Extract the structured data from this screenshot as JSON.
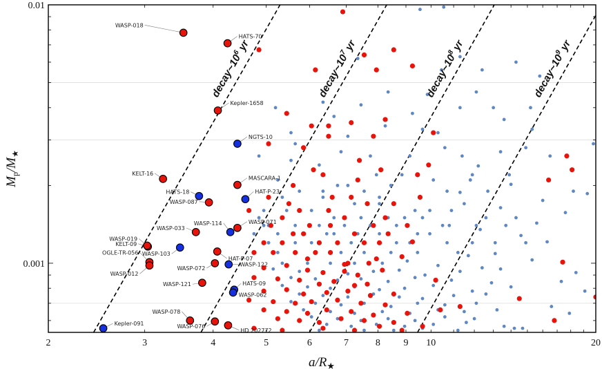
{
  "chart_data": {
    "type": "scatter",
    "xscale": "log",
    "yscale": "log",
    "xlim": [
      2,
      20
    ],
    "ylim": [
      0.00054,
      0.01
    ],
    "xticks": [
      2,
      3,
      4,
      5,
      6,
      7,
      8,
      9,
      10,
      20
    ],
    "yticks": [
      0.001,
      0.01
    ],
    "ytick_labels": [
      "0.001",
      "0.01"
    ],
    "xlabel_main": "a/R",
    "xlabel_sub": "★",
    "ylabel_main": "M",
    "ylabel_sub1": "p",
    "ylabel_mid": "/M",
    "ylabel_sub2": "★",
    "grid": "horizontal",
    "colors": {
      "red": "#e8140c",
      "blue": "#1530e0",
      "bg_points": "#5f87c3",
      "frame": "#000000",
      "grid": "#dddddd"
    },
    "decay_lines": [
      {
        "label": "decay~10",
        "exponent": "6",
        "unit": "yr",
        "x_at_ymin": 2.42,
        "x_at_ymax": 5.3
      },
      {
        "label": "decay~10",
        "exponent": "7",
        "unit": "yr",
        "x_at_ymin": 3.8,
        "x_at_ymax": 8.3
      },
      {
        "label": "decay~10",
        "exponent": "8",
        "unit": "yr",
        "x_at_ymin": 6.0,
        "x_at_ymax": 13.05
      },
      {
        "label": "decay~10",
        "exponent": "9",
        "unit": "yr",
        "x_at_ymin": 9.45,
        "x_at_ymax": 20.5
      }
    ],
    "labeled_planets": [
      {
        "name": "WASP-018",
        "x": 3.53,
        "y": 0.0078,
        "color": "red"
      },
      {
        "name": "HATS-70",
        "x": 4.25,
        "y": 0.0071,
        "color": "red"
      },
      {
        "name": "Kepler-1658",
        "x": 4.08,
        "y": 0.0039,
        "color": "red"
      },
      {
        "name": "NGTS-10",
        "x": 4.43,
        "y": 0.0029,
        "color": "blue"
      },
      {
        "name": "KELT-16",
        "x": 3.24,
        "y": 0.00212,
        "color": "red"
      },
      {
        "name": "MASCARA-1",
        "x": 4.43,
        "y": 0.00201,
        "color": "red"
      },
      {
        "name": "HAT-P-23",
        "x": 4.58,
        "y": 0.00177,
        "color": "blue"
      },
      {
        "name": "HATS-18",
        "x": 3.77,
        "y": 0.00182,
        "color": "blue"
      },
      {
        "name": "WASP-087",
        "x": 3.93,
        "y": 0.00172,
        "color": "red"
      },
      {
        "name": "WASP-114",
        "x": 4.3,
        "y": 0.00132,
        "color": "blue"
      },
      {
        "name": "WASP-071",
        "x": 4.43,
        "y": 0.00137,
        "color": "red"
      },
      {
        "name": "WASP-033",
        "x": 3.72,
        "y": 0.00132,
        "color": "red"
      },
      {
        "name": "KELT-09",
        "x": 3.04,
        "y": 0.00116,
        "color": "red"
      },
      {
        "name": "WASP-019",
        "x": 3.03,
        "y": 0.00117,
        "color": "red"
      },
      {
        "name": "WASP-103",
        "x": 3.48,
        "y": 0.00115,
        "color": "blue"
      },
      {
        "name": "HAT-P-07",
        "x": 4.07,
        "y": 0.00111,
        "color": "red"
      },
      {
        "name": "OGLE-TR-056",
        "x": 3.06,
        "y": 0.00101,
        "color": "red"
      },
      {
        "name": "WASP-012",
        "x": 3.06,
        "y": 0.00098,
        "color": "red"
      },
      {
        "name": "WASP-072",
        "x": 4.03,
        "y": 0.001,
        "color": "red"
      },
      {
        "name": "WASP-122",
        "x": 4.27,
        "y": 0.00099,
        "color": "blue"
      },
      {
        "name": "WASP-121",
        "x": 3.82,
        "y": 0.00084,
        "color": "red"
      },
      {
        "name": "HATS-09",
        "x": 4.37,
        "y": 0.00079,
        "color": "blue"
      },
      {
        "name": "WASP-062",
        "x": 4.35,
        "y": 0.00077,
        "color": "blue"
      },
      {
        "name": "WASP-078",
        "x": 3.63,
        "y": 0.0006,
        "color": "red"
      },
      {
        "name": "WASP-076",
        "x": 4.03,
        "y": 0.000595,
        "color": "red"
      },
      {
        "name": "HD 202772",
        "x": 4.26,
        "y": 0.000575,
        "color": "red"
      },
      {
        "name": "Kepler-091",
        "x": 2.52,
        "y": 0.00056,
        "color": "blue"
      }
    ],
    "red_points": [
      [
        4.85,
        0.0067
      ],
      [
        6.9,
        0.0094
      ],
      [
        7.55,
        0.0064
      ],
      [
        8.55,
        0.0067
      ],
      [
        7.95,
        0.0056
      ],
      [
        9.25,
        0.0058
      ],
      [
        6.15,
        0.0056
      ],
      [
        5.45,
        0.0038
      ],
      [
        6.05,
        0.0034
      ],
      [
        6.5,
        0.0034
      ],
      [
        7.15,
        0.0035
      ],
      [
        8.25,
        0.0036
      ],
      [
        10.1,
        0.0032
      ],
      [
        6.5,
        0.0031
      ],
      [
        7.85,
        0.0031
      ],
      [
        5.05,
        0.0029
      ],
      [
        5.85,
        0.0028
      ],
      [
        7.4,
        0.0025
      ],
      [
        9.9,
        0.0024
      ],
      [
        6.1,
        0.0023
      ],
      [
        8.1,
        0.0023
      ],
      [
        6.35,
        0.0022
      ],
      [
        7.35,
        0.0021
      ],
      [
        9.45,
        0.0022
      ],
      [
        16.4,
        0.0021
      ],
      [
        17.7,
        0.0026
      ],
      [
        18.1,
        0.0023
      ],
      [
        5.6,
        0.002
      ],
      [
        5.05,
        0.0018
      ],
      [
        5.5,
        0.0017
      ],
      [
        6.6,
        0.0018
      ],
      [
        7.15,
        0.0018
      ],
      [
        7.65,
        0.0017
      ],
      [
        8.55,
        0.0017
      ],
      [
        9.55,
        0.0018
      ],
      [
        4.65,
        0.0016
      ],
      [
        5.35,
        0.0015
      ],
      [
        5.75,
        0.0016
      ],
      [
        6.5,
        0.0016
      ],
      [
        6.95,
        0.0015
      ],
      [
        8.25,
        0.0015
      ],
      [
        5.1,
        0.0014
      ],
      [
        5.6,
        0.0013
      ],
      [
        6.0,
        0.0014
      ],
      [
        6.55,
        0.0014
      ],
      [
        7.25,
        0.0013
      ],
      [
        7.85,
        0.0014
      ],
      [
        8.35,
        0.0013
      ],
      [
        9.05,
        0.0014
      ],
      [
        4.95,
        0.0012
      ],
      [
        5.35,
        0.0012
      ],
      [
        5.85,
        0.0013
      ],
      [
        6.25,
        0.0012
      ],
      [
        6.75,
        0.0012
      ],
      [
        7.55,
        0.0012
      ],
      [
        8.05,
        0.0012
      ],
      [
        4.75,
        0.0011
      ],
      [
        5.15,
        0.0011
      ],
      [
        5.65,
        0.0011
      ],
      [
        6.15,
        0.0011
      ],
      [
        6.55,
        0.0011
      ],
      [
        7.05,
        0.001
      ],
      [
        7.7,
        0.001
      ],
      [
        4.95,
        0.00096
      ],
      [
        5.45,
        0.00098
      ],
      [
        5.95,
        0.00094
      ],
      [
        6.35,
        0.00092
      ],
      [
        6.95,
        0.00093
      ],
      [
        7.35,
        0.0009
      ],
      [
        8.15,
        0.00094
      ],
      [
        4.75,
        0.00088
      ],
      [
        5.25,
        0.00087
      ],
      [
        5.75,
        0.00086
      ],
      [
        6.25,
        0.00083
      ],
      [
        6.65,
        0.00085
      ],
      [
        7.25,
        0.00082
      ],
      [
        7.65,
        0.00083
      ],
      [
        4.95,
        0.00078
      ],
      [
        5.45,
        0.00079
      ],
      [
        5.85,
        0.00076
      ],
      [
        6.45,
        0.00077
      ],
      [
        7.05,
        0.00078
      ],
      [
        7.75,
        0.00075
      ],
      [
        8.55,
        0.00076
      ],
      [
        4.65,
        0.00072
      ],
      [
        5.15,
        0.00071
      ],
      [
        5.65,
        0.0007
      ],
      [
        6.05,
        0.00071
      ],
      [
        6.75,
        0.00072
      ],
      [
        7.45,
        0.0007
      ],
      [
        8.25,
        0.00069
      ],
      [
        4.95,
        0.00066
      ],
      [
        5.45,
        0.00065
      ],
      [
        5.95,
        0.00064
      ],
      [
        6.45,
        0.00066
      ],
      [
        7.15,
        0.00065
      ],
      [
        7.85,
        0.00063
      ],
      [
        9.05,
        0.00064
      ],
      [
        5.25,
        0.00061
      ],
      [
        5.75,
        0.0006
      ],
      [
        6.25,
        0.00059
      ],
      [
        6.85,
        0.00061
      ],
      [
        7.55,
        0.0006
      ],
      [
        8.55,
        0.00059
      ],
      [
        10.4,
        0.00066
      ],
      [
        11.3,
        0.00068
      ],
      [
        4.75,
        0.00056
      ],
      [
        5.35,
        0.00055
      ],
      [
        6.35,
        0.00056
      ],
      [
        7.25,
        0.00055
      ],
      [
        8.05,
        0.00057
      ],
      [
        8.85,
        0.00055
      ],
      [
        14.5,
        0.00073
      ],
      [
        17.4,
        0.00101
      ],
      [
        16.8,
        0.0006
      ],
      [
        20.0,
        0.00074
      ],
      [
        9.65,
        0.00057
      ],
      [
        10.2,
        0.00086
      ],
      [
        6.95,
        0.00099
      ],
      [
        7.95,
        0.00104
      ],
      [
        5.95,
        0.00104
      ],
      [
        9.25,
        0.00121
      ],
      [
        8.85,
        0.00106
      ]
    ],
    "background_points": [
      [
        5.2,
        0.004
      ],
      [
        6.35,
        0.0042
      ],
      [
        6.65,
        0.0037
      ],
      [
        7.35,
        0.0062
      ],
      [
        9.55,
        0.0096
      ],
      [
        10.55,
        0.0098
      ],
      [
        11.3,
        0.0063
      ],
      [
        10.45,
        0.0056
      ],
      [
        12.4,
        0.0056
      ],
      [
        14.3,
        0.006
      ],
      [
        15.8,
        0.0053
      ],
      [
        12.1,
        0.0046
      ],
      [
        9.85,
        0.0045
      ],
      [
        8.35,
        0.0046
      ],
      [
        7.45,
        0.0041
      ],
      [
        9.25,
        0.0038
      ],
      [
        11.3,
        0.004
      ],
      [
        13.0,
        0.004
      ],
      [
        15.2,
        0.004
      ],
      [
        13.6,
        0.0036
      ],
      [
        10.3,
        0.0032
      ],
      [
        9.65,
        0.0033
      ],
      [
        8.25,
        0.0034
      ],
      [
        7.05,
        0.0031
      ],
      [
        5.55,
        0.0032
      ],
      [
        5.65,
        0.0029
      ],
      [
        6.85,
        0.0027
      ],
      [
        7.75,
        0.0026
      ],
      [
        9.15,
        0.0026
      ],
      [
        11.4,
        0.0026
      ],
      [
        14.9,
        0.0028
      ],
      [
        19.8,
        0.0029
      ],
      [
        4.85,
        0.0026
      ],
      [
        5.55,
        0.0025
      ],
      [
        6.25,
        0.0024
      ],
      [
        7.95,
        0.0022
      ],
      [
        8.85,
        0.0022
      ],
      [
        10.1,
        0.0021
      ],
      [
        11.9,
        0.0022
      ],
      [
        13.9,
        0.0022
      ],
      [
        18.2,
        0.0019
      ],
      [
        5.25,
        0.0021
      ],
      [
        6.75,
        0.002
      ],
      [
        7.55,
        0.0019
      ],
      [
        8.45,
        0.002
      ],
      [
        10.7,
        0.0019
      ],
      [
        12.7,
        0.0019
      ],
      [
        5.75,
        0.0019
      ],
      [
        6.35,
        0.0018
      ],
      [
        7.25,
        0.0017
      ],
      [
        8.05,
        0.0017
      ],
      [
        9.35,
        0.0016
      ],
      [
        11.5,
        0.0017
      ],
      [
        4.95,
        0.0016
      ],
      [
        5.45,
        0.0016
      ],
      [
        6.05,
        0.0016
      ],
      [
        6.65,
        0.0015
      ],
      [
        7.45,
        0.0015
      ],
      [
        8.35,
        0.0015
      ],
      [
        9.65,
        0.0015
      ],
      [
        10.9,
        0.0016
      ],
      [
        14.3,
        0.0015
      ],
      [
        5.05,
        0.0014
      ],
      [
        5.65,
        0.0014
      ],
      [
        6.25,
        0.0014
      ],
      [
        6.95,
        0.0014
      ],
      [
        7.75,
        0.0014
      ],
      [
        8.65,
        0.0014
      ],
      [
        9.95,
        0.0013
      ],
      [
        12.1,
        0.0014
      ],
      [
        4.75,
        0.0013
      ],
      [
        5.25,
        0.0013
      ],
      [
        5.85,
        0.0013
      ],
      [
        6.45,
        0.0013
      ],
      [
        7.15,
        0.0012
      ],
      [
        8.05,
        0.0013
      ],
      [
        9.15,
        0.0012
      ],
      [
        10.7,
        0.0012
      ],
      [
        13.1,
        0.0012
      ],
      [
        5.05,
        0.0012
      ],
      [
        5.65,
        0.0012
      ],
      [
        6.15,
        0.0011
      ],
      [
        6.85,
        0.0011
      ],
      [
        7.55,
        0.0011
      ],
      [
        8.45,
        0.0011
      ],
      [
        9.45,
        0.0011
      ],
      [
        11.2,
        0.0011
      ],
      [
        14.9,
        0.0012
      ],
      [
        5.35,
        0.001
      ],
      [
        5.95,
        0.001
      ],
      [
        6.55,
        0.001
      ],
      [
        7.25,
        0.001
      ],
      [
        8.15,
        0.001
      ],
      [
        9.05,
        0.00102
      ],
      [
        10.3,
        0.00098
      ],
      [
        12.4,
        0.00096
      ],
      [
        5.15,
        0.00095
      ],
      [
        5.75,
        0.00093
      ],
      [
        6.35,
        0.00092
      ],
      [
        7.05,
        0.00091
      ],
      [
        7.85,
        0.00093
      ],
      [
        8.75,
        0.00094
      ],
      [
        9.75,
        0.0009
      ],
      [
        11.3,
        0.00093
      ],
      [
        13.4,
        0.00095
      ],
      [
        5.55,
        0.00088
      ],
      [
        6.15,
        0.00087
      ],
      [
        6.75,
        0.00086
      ],
      [
        7.45,
        0.00087
      ],
      [
        8.35,
        0.00085
      ],
      [
        9.35,
        0.00088
      ],
      [
        10.9,
        0.00086
      ],
      [
        12.9,
        0.00084
      ],
      [
        5.35,
        0.00082
      ],
      [
        5.95,
        0.00081
      ],
      [
        6.55,
        0.0008
      ],
      [
        7.25,
        0.00081
      ],
      [
        8.05,
        0.00079
      ],
      [
        8.95,
        0.0008
      ],
      [
        10.1,
        0.00082
      ],
      [
        11.9,
        0.00078
      ],
      [
        14.0,
        0.00081
      ],
      [
        5.75,
        0.00076
      ],
      [
        6.35,
        0.00075
      ],
      [
        7.05,
        0.00074
      ],
      [
        7.85,
        0.00076
      ],
      [
        8.75,
        0.00074
      ],
      [
        9.65,
        0.00073
      ],
      [
        11.0,
        0.00075
      ],
      [
        12.6,
        0.00076
      ],
      [
        5.55,
        0.00071
      ],
      [
        6.15,
        0.0007
      ],
      [
        6.85,
        0.00069
      ],
      [
        7.55,
        0.0007
      ],
      [
        8.45,
        0.00068
      ],
      [
        9.45,
        0.0007
      ],
      [
        10.6,
        0.00069
      ],
      [
        12.1,
        0.0007
      ],
      [
        5.85,
        0.00066
      ],
      [
        6.55,
        0.00065
      ],
      [
        7.25,
        0.00064
      ],
      [
        8.15,
        0.00065
      ],
      [
        9.15,
        0.00064
      ],
      [
        10.3,
        0.00066
      ],
      [
        11.5,
        0.00065
      ],
      [
        13.2,
        0.00066
      ],
      [
        6.05,
        0.00062
      ],
      [
        6.75,
        0.00061
      ],
      [
        7.45,
        0.0006
      ],
      [
        8.35,
        0.00061
      ],
      [
        9.35,
        0.0006
      ],
      [
        10.6,
        0.00062
      ],
      [
        12.0,
        0.00061
      ],
      [
        6.45,
        0.00058
      ],
      [
        7.15,
        0.00057
      ],
      [
        7.95,
        0.00058
      ],
      [
        8.95,
        0.00057
      ],
      [
        10.1,
        0.00058
      ],
      [
        11.6,
        0.00059
      ],
      [
        13.6,
        0.00057
      ],
      [
        6.25,
        0.00055
      ],
      [
        7.55,
        0.00055
      ],
      [
        8.55,
        0.00055
      ],
      [
        9.65,
        0.00056
      ],
      [
        11.2,
        0.00055
      ],
      [
        14.2,
        0.00056
      ],
      [
        14.7,
        0.00056
      ],
      [
        16.6,
        0.00068
      ],
      [
        17.3,
        0.00085
      ],
      [
        17.9,
        0.00064
      ],
      [
        18.4,
        0.00092
      ],
      [
        19.1,
        0.00078
      ],
      [
        15.3,
        0.00103
      ],
      [
        13.1,
        0.00109
      ],
      [
        11.7,
        0.00107
      ],
      [
        14.6,
        0.00128
      ],
      [
        16.3,
        0.00121
      ],
      [
        12.3,
        0.00135
      ],
      [
        15.6,
        0.00143
      ],
      [
        13.4,
        0.00164
      ],
      [
        16.0,
        0.00175
      ],
      [
        11.3,
        0.00188
      ],
      [
        14.0,
        0.00202
      ],
      [
        17.6,
        0.00157
      ],
      [
        19.3,
        0.00186
      ],
      [
        12.2,
        0.00238
      ],
      [
        16.5,
        0.0026
      ],
      [
        10.6,
        0.0028
      ],
      [
        15.3,
        0.0033
      ],
      [
        13.4,
        0.0027
      ],
      [
        11.8,
        0.0021
      ],
      [
        9.95,
        0.0016
      ],
      [
        10.5,
        0.0014
      ],
      [
        11.9,
        0.0012
      ],
      [
        8.95,
        0.0015
      ],
      [
        8.05,
        0.0018
      ],
      [
        7.05,
        0.002
      ],
      [
        6.35,
        0.0019
      ],
      [
        5.35,
        0.0018
      ],
      [
        4.85,
        0.0015
      ],
      [
        4.95,
        0.0014
      ],
      [
        5.05,
        0.0012
      ],
      [
        5.25,
        0.0011
      ],
      [
        6.05,
        0.0012
      ],
      [
        6.65,
        0.0013
      ],
      [
        7.35,
        0.0013
      ],
      [
        8.65,
        0.0012
      ],
      [
        9.45,
        0.0013
      ],
      [
        10.8,
        0.0014
      ],
      [
        12.6,
        0.0015
      ],
      [
        13.7,
        0.0014
      ]
    ]
  }
}
